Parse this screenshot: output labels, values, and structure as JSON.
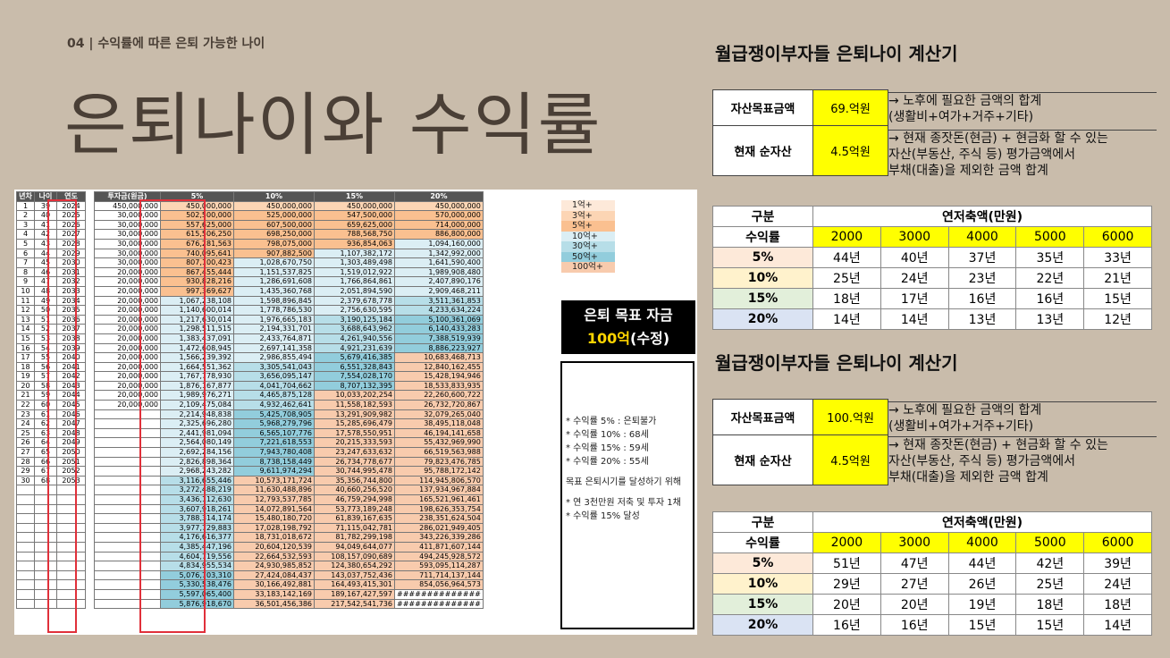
{
  "header": {
    "subtitle": "04 | 수익률에 따른 은퇴 가능한 나이",
    "title": "은퇴나이와 수익률"
  },
  "sheet": {
    "headers": [
      "년차",
      "나이",
      "연도",
      "투자금(원금)",
      "5%",
      "10%",
      "15%",
      "20%"
    ],
    "rows": [
      [
        "1",
        "39",
        "2024",
        "450,000,000",
        "450,000,000",
        "450,000,000",
        "450,000,000",
        "450,000,000"
      ],
      [
        "2",
        "40",
        "2025",
        "30,000,000",
        "502,500,000",
        "525,000,000",
        "547,500,000",
        "570,000,000"
      ],
      [
        "3",
        "41",
        "2026",
        "30,000,000",
        "557,625,000",
        "607,500,000",
        "659,625,000",
        "714,000,000"
      ],
      [
        "4",
        "42",
        "2027",
        "30,000,000",
        "615,506,250",
        "698,250,000",
        "788,568,750",
        "886,800,000"
      ],
      [
        "5",
        "43",
        "2028",
        "30,000,000",
        "676,281,563",
        "798,075,000",
        "936,854,063",
        "1,094,160,000"
      ],
      [
        "6",
        "44",
        "2029",
        "30,000,000",
        "740,095,641",
        "907,882,500",
        "1,107,382,172",
        "1,342,992,000"
      ],
      [
        "7",
        "45",
        "2030",
        "30,000,000",
        "807,100,423",
        "1,028,670,750",
        "1,303,489,498",
        "1,641,590,400"
      ],
      [
        "8",
        "46",
        "2031",
        "20,000,000",
        "867,455,444",
        "1,151,537,825",
        "1,519,012,922",
        "1,989,908,480"
      ],
      [
        "9",
        "47",
        "2032",
        "20,000,000",
        "930,828,216",
        "1,286,691,608",
        "1,766,864,861",
        "2,407,890,176"
      ],
      [
        "10",
        "48",
        "2033",
        "20,000,000",
        "997,369,627",
        "1,435,360,768",
        "2,051,894,590",
        "2,909,468,211"
      ],
      [
        "11",
        "49",
        "2034",
        "20,000,000",
        "1,067,238,108",
        "1,598,896,845",
        "2,379,678,778",
        "3,511,361,853"
      ],
      [
        "12",
        "50",
        "2035",
        "20,000,000",
        "1,140,600,014",
        "1,778,786,530",
        "2,756,630,595",
        "4,233,634,224"
      ],
      [
        "13",
        "51",
        "2036",
        "20,000,000",
        "1,217,630,014",
        "1,976,665,183",
        "3,190,125,184",
        "5,100,361,069"
      ],
      [
        "14",
        "52",
        "2037",
        "20,000,000",
        "1,298,511,515",
        "2,194,331,701",
        "3,688,643,962",
        "6,140,433,283"
      ],
      [
        "15",
        "53",
        "2038",
        "20,000,000",
        "1,383,437,091",
        "2,433,764,871",
        "4,261,940,556",
        "7,388,519,939"
      ],
      [
        "16",
        "54",
        "2039",
        "20,000,000",
        "1,472,608,945",
        "2,697,141,358",
        "4,921,231,639",
        "8,886,223,927"
      ],
      [
        "17",
        "55",
        "2040",
        "20,000,000",
        "1,566,239,392",
        "2,986,855,494",
        "5,679,416,385",
        "10,683,468,713"
      ],
      [
        "18",
        "56",
        "2041",
        "20,000,000",
        "1,664,551,362",
        "3,305,541,043",
        "6,551,328,843",
        "12,840,162,455"
      ],
      [
        "19",
        "57",
        "2042",
        "20,000,000",
        "1,767,778,930",
        "3,656,095,147",
        "7,554,028,170",
        "15,428,194,946"
      ],
      [
        "20",
        "58",
        "2043",
        "20,000,000",
        "1,876,167,877",
        "4,041,704,662",
        "8,707,132,395",
        "18,533,833,935"
      ],
      [
        "21",
        "59",
        "2044",
        "20,000,000",
        "1,989,976,271",
        "4,465,875,128",
        "10,033,202,254",
        "22,260,600,722"
      ],
      [
        "22",
        "60",
        "2045",
        "20,000,000",
        "2,109,475,084",
        "4,932,462,641",
        "11,558,182,593",
        "26,732,720,867"
      ],
      [
        "23",
        "61",
        "2046",
        "",
        "2,214,948,838",
        "5,425,708,905",
        "13,291,909,982",
        "32,079,265,040"
      ],
      [
        "24",
        "62",
        "2047",
        "",
        "2,325,696,280",
        "5,968,279,796",
        "15,285,696,479",
        "38,495,118,048"
      ],
      [
        "25",
        "63",
        "2048",
        "",
        "2,441,981,094",
        "6,565,107,776",
        "17,578,550,951",
        "46,194,141,658"
      ],
      [
        "26",
        "64",
        "2049",
        "",
        "2,564,080,149",
        "7,221,618,553",
        "20,215,333,593",
        "55,432,969,990"
      ],
      [
        "27",
        "65",
        "2050",
        "",
        "2,692,284,156",
        "7,943,780,408",
        "23,247,633,632",
        "66,519,563,988"
      ],
      [
        "28",
        "66",
        "2051",
        "",
        "2,826,898,364",
        "8,738,158,449",
        "26,734,778,677",
        "79,823,476,785"
      ],
      [
        "29",
        "67",
        "2052",
        "",
        "2,968,243,282",
        "9,611,974,294",
        "30,744,995,478",
        "95,788,172,142"
      ],
      [
        "30",
        "68",
        "2053",
        "",
        "3,116,655,446",
        "10,573,171,724",
        "35,356,744,800",
        "114,945,806,570"
      ],
      [
        "",
        "",
        "",
        "",
        "3,272,488,219",
        "11,630,488,896",
        "40,660,256,520",
        "137,934,967,884"
      ],
      [
        "",
        "",
        "",
        "",
        "3,436,112,630",
        "12,793,537,785",
        "46,759,294,998",
        "165,521,961,461"
      ],
      [
        "",
        "",
        "",
        "",
        "3,607,918,261",
        "14,072,891,564",
        "53,773,189,248",
        "198,626,353,754"
      ],
      [
        "",
        "",
        "",
        "",
        "3,788,314,174",
        "15,480,180,720",
        "61,839,167,635",
        "238,351,624,504"
      ],
      [
        "",
        "",
        "",
        "",
        "3,977,729,883",
        "17,028,198,792",
        "71,115,042,781",
        "286,021,949,405"
      ],
      [
        "",
        "",
        "",
        "",
        "4,176,616,377",
        "18,731,018,672",
        "81,782,299,198",
        "343,226,339,286"
      ],
      [
        "",
        "",
        "",
        "",
        "4,385,447,196",
        "20,604,120,539",
        "94,049,644,077",
        "411,871,607,144"
      ],
      [
        "",
        "",
        "",
        "",
        "4,604,719,556",
        "22,664,532,593",
        "108,157,090,689",
        "494,245,928,572"
      ],
      [
        "",
        "",
        "",
        "",
        "4,834,955,534",
        "24,930,985,852",
        "124,380,654,292",
        "593,095,114,287"
      ],
      [
        "",
        "",
        "",
        "",
        "5,076,703,310",
        "27,424,084,437",
        "143,037,752,436",
        "711,714,137,144"
      ],
      [
        "",
        "",
        "",
        "",
        "5,330,538,476",
        "30,166,492,881",
        "164,493,415,301",
        "854,056,964,573"
      ],
      [
        "",
        "",
        "",
        "",
        "5,597,065,400",
        "33,183,142,169",
        "189,167,427,597",
        "##############"
      ],
      [
        "",
        "",
        "",
        "",
        "5,876,918,670",
        "36,501,456,386",
        "217,542,541,736",
        "##############"
      ]
    ],
    "legend": [
      "1억+",
      "3억+",
      "5억+",
      "10억+",
      "30억+",
      "50억+",
      "100억+"
    ],
    "legend_colors": [
      "#fde9d9",
      "#fcd5b4",
      "#fac090",
      "#dbeef4",
      "#b7dee8",
      "#92cddc",
      "#f8cbad"
    ],
    "goal_label": "은퇴 목표 자금",
    "goal_amount": "100억",
    "goal_suffix": "(수정)",
    "notes": [
      "* 수익률 5% : 은퇴불가",
      "* 수익률 10% : 68세",
      "* 수익률 15% : 59세",
      "* 수익률 20% : 55세",
      "",
      "목표 은퇴시기를 달성하기 위해",
      "",
      "* 연 3천만원 저축 및 투자 1채",
      "* 수익률 15% 달성"
    ]
  },
  "calc1": {
    "title": "월급쟁이부자들 은퇴나이 계산기",
    "target_label": "자산목표금액",
    "target_value": "69.억원",
    "target_note1": "→ 노후에 필요한 금액의 합계",
    "target_note2": "(생활비+여가+거주+기타)",
    "net_label": "현재 순자산",
    "net_value": "4.5억원",
    "net_note1": "→ 현재 종잣돈(현금) + 현금화 할 수 있는",
    "net_note2": "자산(부동산, 주식 등) 평가금액에서",
    "net_note3": "부채(대출)을 제외한 금액 합계",
    "col_label": "구분",
    "group_label": "연저축액(만원)",
    "rate_label": "수익률",
    "savings": [
      "2000",
      "3000",
      "4000",
      "5000",
      "6000"
    ],
    "rows": [
      {
        "rate": "5%",
        "years": [
          "44년",
          "40년",
          "37년",
          "35년",
          "33년"
        ]
      },
      {
        "rate": "10%",
        "years": [
          "25년",
          "24년",
          "23년",
          "22년",
          "21년"
        ]
      },
      {
        "rate": "15%",
        "years": [
          "18년",
          "17년",
          "16년",
          "16년",
          "15년"
        ]
      },
      {
        "rate": "20%",
        "years": [
          "14년",
          "14년",
          "13년",
          "13년",
          "12년"
        ]
      }
    ]
  },
  "calc2": {
    "title": "월급쟁이부자들 은퇴나이 계산기",
    "target_label": "자산목표금액",
    "target_value": "100.억원",
    "target_note1": "→ 노후에 필요한 금액의 합계",
    "target_note2": "(생활비+여가+거주+기타)",
    "net_label": "현재 순자산",
    "net_value": "4.5억원",
    "net_note1": "→ 현재 종잣돈(현금) + 현금화 할 수 있는",
    "net_note2": "자산(부동산, 주식 등) 평가금액에서",
    "net_note3": "부채(대출)을 제외한 금액 합계",
    "col_label": "구분",
    "group_label": "연저축액(만원)",
    "rate_label": "수익률",
    "savings": [
      "2000",
      "3000",
      "4000",
      "5000",
      "6000"
    ],
    "rows": [
      {
        "rate": "5%",
        "years": [
          "51년",
          "47년",
          "44년",
          "42년",
          "39년"
        ]
      },
      {
        "rate": "10%",
        "years": [
          "29년",
          "27년",
          "26년",
          "25년",
          "24년"
        ]
      },
      {
        "rate": "15%",
        "years": [
          "20년",
          "20년",
          "19년",
          "18년",
          "18년"
        ]
      },
      {
        "rate": "20%",
        "years": [
          "16년",
          "16년",
          "15년",
          "15년",
          "14년"
        ]
      }
    ]
  },
  "colors": {
    "background": "#c9bcab",
    "highlight": "#ffff00",
    "red": "#e0303a",
    "rate5": "#fde9d9",
    "rate10": "#fff2cc",
    "rate15": "#e2efda",
    "rate20": "#dae3f3"
  }
}
